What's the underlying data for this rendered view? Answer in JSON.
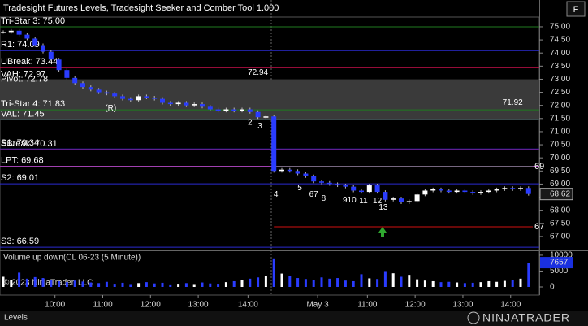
{
  "header": {
    "title": "Tradesight Futures Levels, Tradesight Seeker and Comber Tool 1.000",
    "button": "F"
  },
  "chart_data": {
    "type": "candlestick",
    "x": [
      0,
      2,
      4,
      6,
      8,
      10,
      12,
      14,
      16,
      18,
      20,
      22,
      24,
      26,
      28,
      30,
      32,
      34,
      36,
      38,
      40,
      42,
      44,
      46,
      48,
      50,
      52,
      54,
      56,
      58,
      60,
      62,
      64,
      66,
      68,
      70,
      72,
      74,
      76,
      78,
      80,
      82,
      84,
      86,
      88,
      90,
      92,
      94,
      96,
      98,
      100,
      102,
      104,
      106,
      108,
      110,
      112,
      114,
      116,
      118,
      120,
      122,
      124,
      126,
      128,
      130,
      132
    ],
    "values": [
      74.8,
      74.85,
      74.7,
      74.55,
      74.3,
      74.05,
      73.75,
      73.35,
      73.05,
      72.85,
      72.7,
      72.6,
      72.5,
      72.45,
      72.35,
      72.25,
      72.2,
      72.35,
      72.3,
      72.25,
      72.1,
      72.05,
      72.1,
      72.0,
      72.05,
      71.95,
      71.85,
      71.8,
      71.85,
      71.8,
      71.85,
      71.75,
      71.55,
      71.58,
      69.5,
      69.55,
      69.5,
      69.4,
      69.3,
      69.1,
      69.05,
      69.0,
      68.95,
      68.9,
      68.75,
      68.7,
      68.95,
      68.7,
      68.4,
      68.45,
      68.3,
      68.35,
      68.6,
      68.75,
      68.8,
      68.75,
      68.7,
      68.75,
      68.7,
      68.65,
      68.7,
      68.75,
      68.8,
      68.85,
      68.8,
      68.85,
      68.62
    ],
    "xlim": [
      0,
      135
    ],
    "xticks": [
      {
        "value": 13,
        "label": "10:00"
      },
      {
        "value": 25,
        "label": "11:00"
      },
      {
        "value": 37,
        "label": "12:00"
      },
      {
        "value": 49,
        "label": "13:00"
      },
      {
        "value": 61.5,
        "label": "14:00"
      },
      {
        "value": 79,
        "label": "May 3"
      },
      {
        "value": 91.5,
        "label": "11:00"
      },
      {
        "value": 103.5,
        "label": "12:00"
      },
      {
        "value": 115.5,
        "label": "13:00"
      },
      {
        "value": 127.5,
        "label": "14:00"
      }
    ],
    "ylim": [
      66.47,
      75.34
    ],
    "yticks": [
      {
        "value": 75,
        "label": "75.00"
      },
      {
        "value": 74.5,
        "label": "74.50"
      },
      {
        "value": 74,
        "label": "74.00"
      },
      {
        "value": 73.5,
        "label": "73.50"
      },
      {
        "value": 73,
        "label": "73.00"
      },
      {
        "value": 72.5,
        "label": "72.50"
      },
      {
        "value": 72,
        "label": "72.00"
      },
      {
        "value": 71.5,
        "label": "71.50"
      },
      {
        "value": 71,
        "label": "71.00"
      },
      {
        "value": 70.5,
        "label": "70.50"
      },
      {
        "value": 70,
        "label": "70.00"
      },
      {
        "value": 69.5,
        "label": "69.50"
      },
      {
        "value": 69,
        "label": "69.00"
      },
      {
        "value": 68.5,
        "label": "68.50"
      },
      {
        "value": 68,
        "label": "68.00"
      },
      {
        "value": 67.5,
        "label": "67.50"
      },
      {
        "value": 67,
        "label": "67.00"
      }
    ],
    "colors": {
      "up": "#ffffff",
      "down": "#2a3cff"
    },
    "levels": [
      {
        "label": "Tri-Star 3: 75.00",
        "value": 75.0,
        "color": "#1f7a1f"
      },
      {
        "label": "R1: 74.09",
        "value": 74.09,
        "color": "#2a2ad0"
      },
      {
        "label": "UBreak: 73.44",
        "value": 73.44,
        "color": "#c8104a"
      },
      {
        "label": "VAH: 72.97",
        "value": 72.97,
        "color": "#bbbbbb"
      },
      {
        "label": "Pivot: 72.78",
        "value": 72.78,
        "color": "#777777"
      },
      {
        "label": "Tri-Star 4: 71.83",
        "value": 71.83,
        "color": "#1f7a1f"
      },
      {
        "label": "VAL: 71.45",
        "value": 71.45,
        "color": "#44c8d8"
      },
      {
        "label": "S1: 70.34",
        "value": 70.34,
        "color": "#2a2ad0"
      },
      {
        "label": "SBreak: 70.31",
        "value": 70.31,
        "color": "#c8104a"
      },
      {
        "label": "LPT: 69.68",
        "value": 69.68,
        "color": "#a040b0"
      },
      {
        "label": "S2: 69.01",
        "value": 69.01,
        "color": "#2a2ad0"
      },
      {
        "label": "S3: 66.59",
        "value": 66.59,
        "color": "#2a2ad0"
      }
    ],
    "targets": [
      {
        "label": "69",
        "value": 69.66,
        "color": "#2fa82f"
      },
      {
        "label": "67",
        "value": 67.37,
        "color": "#d01010"
      }
    ],
    "annotations": [
      {
        "text": "72.94",
        "x": 64,
        "y": 73.25,
        "color": "#2fa82f"
      },
      {
        "text": "(R)",
        "x": 27,
        "y": 71.88,
        "color": "#2fa82f"
      },
      {
        "text": "71.92",
        "x": 128,
        "y": 72.1,
        "color": "#2fa82f"
      },
      {
        "text": "2",
        "x": 62,
        "y": 71.35,
        "color": "#40d8e8"
      },
      {
        "text": "3",
        "x": 64.5,
        "y": 71.2,
        "color": "#40d8e8"
      },
      {
        "text": "4",
        "x": 68.5,
        "y": 68.6,
        "color": "#40d8e8"
      },
      {
        "text": "5",
        "x": 74.5,
        "y": 68.85,
        "color": "#40d8e8"
      },
      {
        "text": "67",
        "x": 78,
        "y": 68.6,
        "color": "#40d8e8"
      },
      {
        "text": "8",
        "x": 80.5,
        "y": 68.45,
        "color": "#40d8e8"
      },
      {
        "text": "910",
        "x": 87,
        "y": 68.38,
        "color": "#40d8e8"
      },
      {
        "text": "11",
        "x": 90.5,
        "y": 68.35,
        "color": "#40d8e8"
      },
      {
        "text": "12",
        "x": 94,
        "y": 68.35,
        "color": "#40d8e8"
      },
      {
        "text": "13",
        "x": 95.5,
        "y": 68.1,
        "color": "#40d8e8"
      }
    ]
  },
  "volume": {
    "title": "Volume up down(CL 06-23 (5 Minute))",
    "values": [
      3200,
      2100,
      4500,
      2600,
      3100,
      2800,
      2300,
      1800,
      1500,
      2000,
      1700,
      1400,
      1200,
      1600,
      1000,
      1300,
      900,
      1200,
      1500,
      1100,
      1300,
      800,
      1000,
      1200,
      900,
      1400,
      1100,
      1000,
      1500,
      1800,
      2200,
      2600,
      3000,
      3400,
      9000,
      4200,
      3500,
      2800,
      2500,
      2200,
      3000,
      2600,
      2800,
      2000,
      1800,
      4000,
      2700,
      2500,
      5000,
      4300,
      3200,
      3800,
      2400,
      2000,
      1800,
      1500,
      1600,
      1400,
      1200,
      1300,
      1500,
      1800,
      1600,
      1900,
      2200,
      2600,
      7657
    ],
    "ylim": [
      0,
      11000
    ],
    "yticks": [
      0,
      5000,
      10000
    ]
  },
  "footer": {
    "copyright": "© 2023 NinjaTrader, LLC",
    "tab": "Levels",
    "logo": "NINJATRADER"
  }
}
